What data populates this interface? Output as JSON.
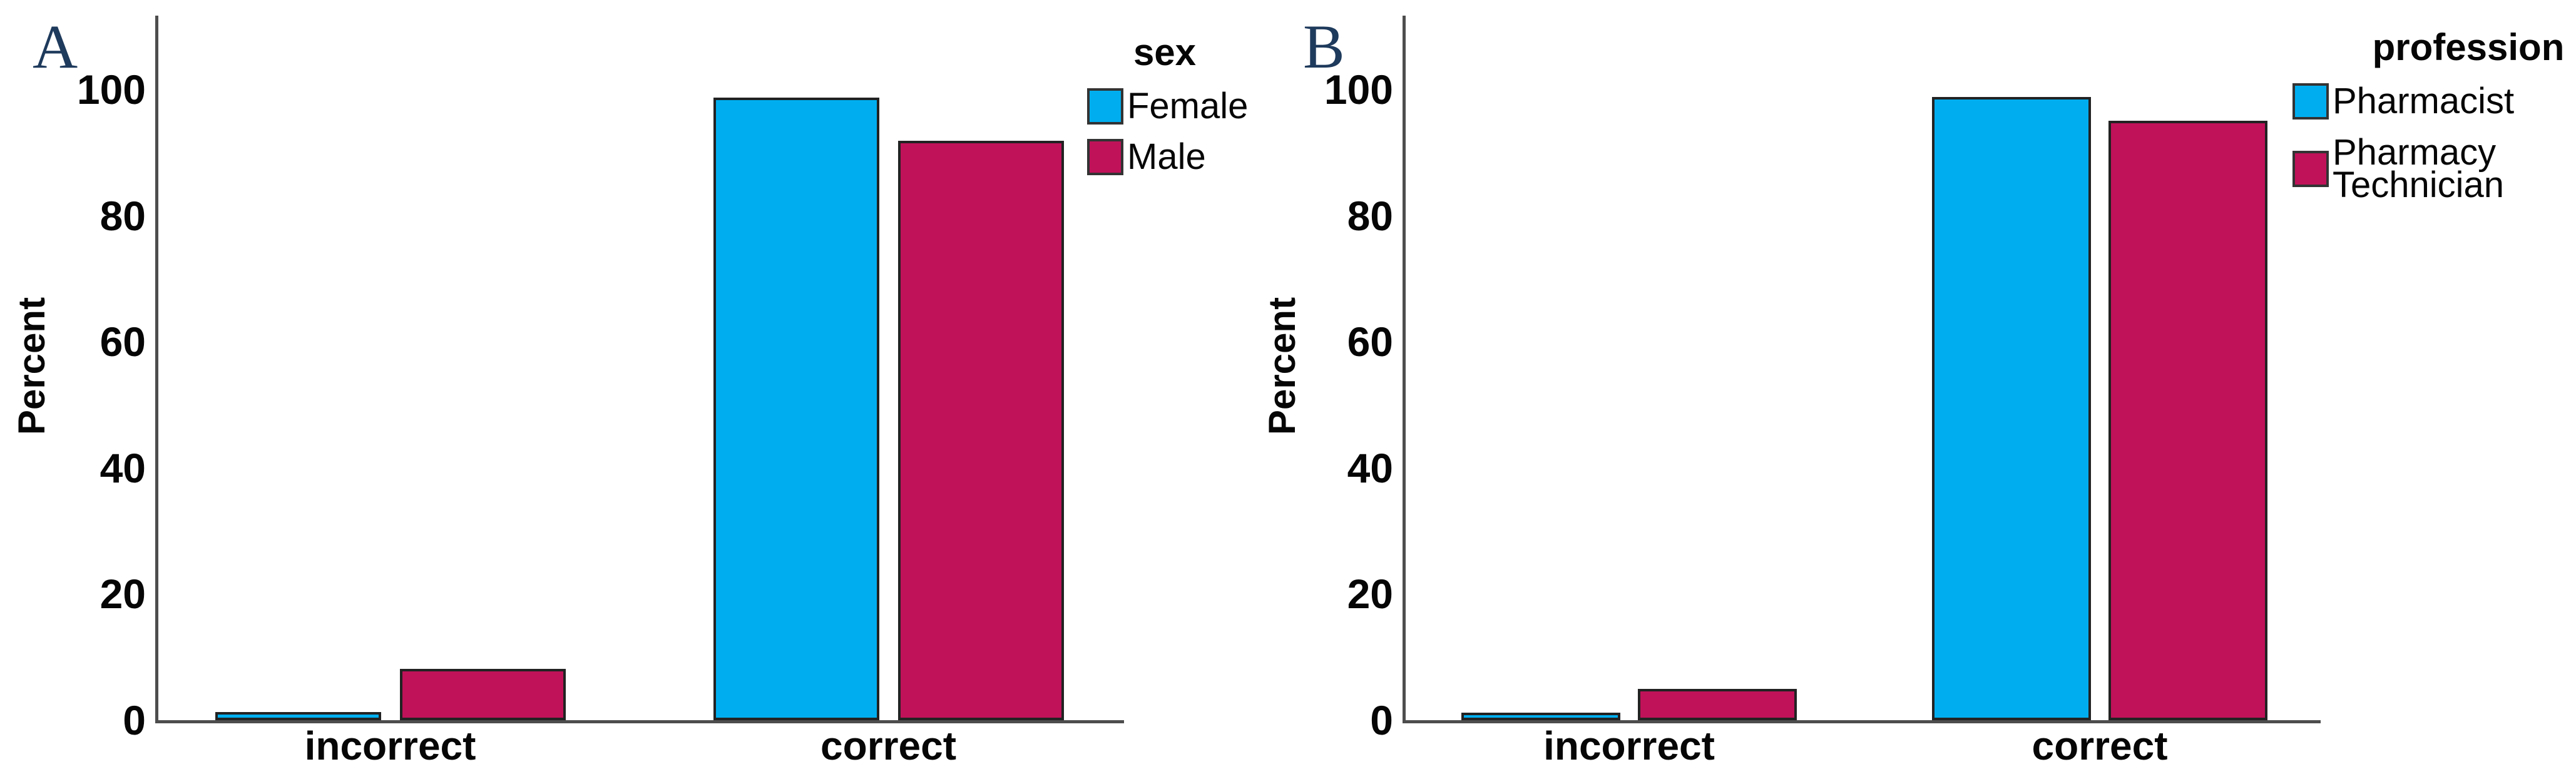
{
  "figure": {
    "background": "#ffffff",
    "axis_color": "#4d4d4d",
    "text_color": "#060606",
    "panel_letter_color": "#1e3a5c",
    "series_colors": {
      "cyan": "#00aeef",
      "crimson": "#c01259"
    }
  },
  "chart_data": [
    {
      "type": "bar",
      "panel": "A",
      "title": "",
      "xlabel": "",
      "ylabel": "Percent",
      "ylim": [
        0,
        100
      ],
      "yticks": [
        0,
        20,
        40,
        60,
        80,
        100
      ],
      "grid": false,
      "legend_title": "sex",
      "legend_position": "top-right-outside",
      "categories": [
        "incorrect",
        "correct"
      ],
      "series": [
        {
          "name": "Female",
          "color": "#00aeef",
          "values": [
            1.3,
            98.7
          ]
        },
        {
          "name": "Male",
          "color": "#c01259",
          "values": [
            8.1,
            91.9
          ]
        }
      ]
    },
    {
      "type": "bar",
      "panel": "B",
      "title": "",
      "xlabel": "",
      "ylabel": "Percent",
      "ylim": [
        0,
        100
      ],
      "yticks": [
        0,
        20,
        40,
        60,
        80,
        100
      ],
      "grid": false,
      "legend_title": "profession",
      "legend_position": "top-right-outside",
      "categories": [
        "incorrect",
        "correct"
      ],
      "series": [
        {
          "name": "Pharmacist",
          "color": "#00aeef",
          "values": [
            1.2,
            98.8
          ]
        },
        {
          "name": "Pharmacy Technician",
          "color": "#c01259",
          "values": [
            5.0,
            95.0
          ]
        }
      ]
    }
  ]
}
